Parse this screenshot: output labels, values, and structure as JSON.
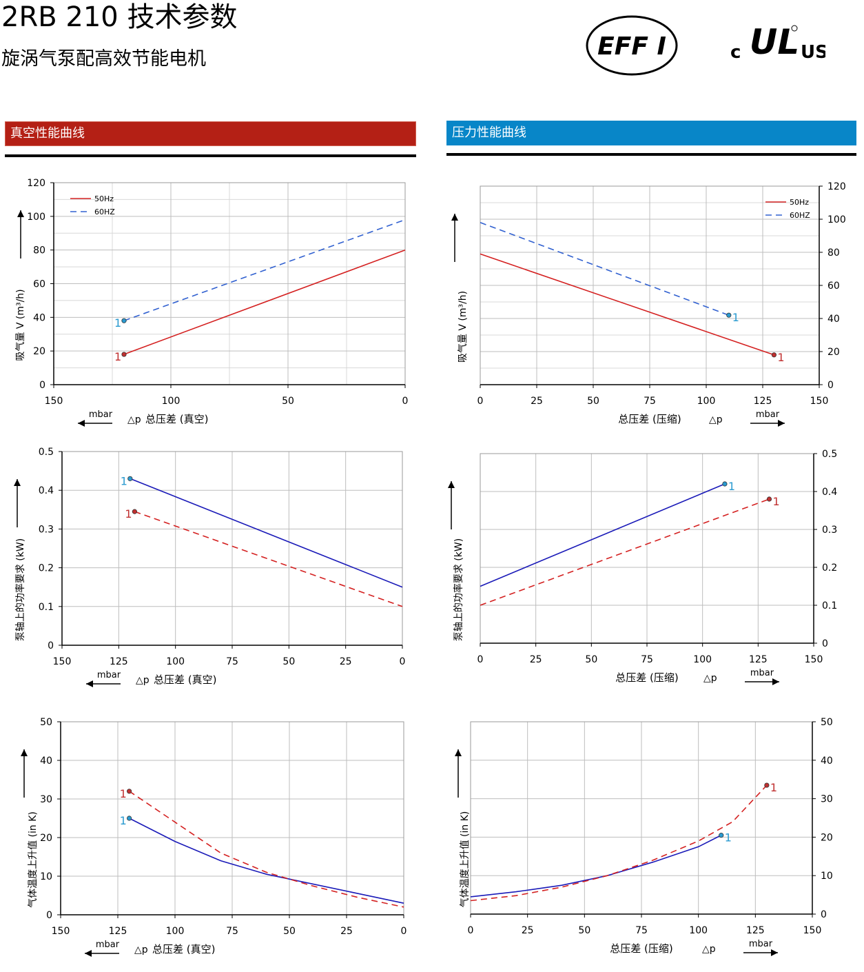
{
  "header": {
    "title": "2RB 210 技术参数",
    "subtitle": "旋涡气泵配高效节能电机",
    "logo_eff_text": "EFF I",
    "logo_ul_c": "c",
    "logo_ul_us": "US",
    "logo_ul_mark": "UL"
  },
  "sections": {
    "vacuum": "真空性能曲线",
    "pressure": "压力性能曲线"
  },
  "colors": {
    "red_bar": "#b42015",
    "blue_bar": "#0886c8",
    "series_red": "#d42020",
    "series_blue_dash": "#3060d0",
    "series_blue": "#1a1ab8",
    "marker_red": "#c03030",
    "marker_blue": "#2a9ad0"
  },
  "chart_data": [
    {
      "id": "vacuum-flow",
      "type": "line",
      "ylabel": "吸气量 V (m³/h)",
      "xlabel_unit": "mbar",
      "xlabel_symbol": "△p",
      "xlabel": "总压差 (真空)",
      "xlim": [
        150,
        0
      ],
      "ylim": [
        0,
        120
      ],
      "xticks": [
        150,
        100,
        50,
        0
      ],
      "yticks": [
        0,
        20,
        40,
        60,
        80,
        100,
        120
      ],
      "grid": true,
      "legend": "top-left",
      "series": [
        {
          "name": "50Hz",
          "style": "solid",
          "color": "#d42020",
          "x": [
            120,
            0
          ],
          "y": [
            18,
            80
          ],
          "marker_label": "1",
          "marker_color": "#c03030"
        },
        {
          "name": "60HZ",
          "style": "dashed",
          "color": "#3060d0",
          "x": [
            120,
            0
          ],
          "y": [
            38,
            98
          ],
          "marker_label": "1",
          "marker_color": "#2a9ad0"
        }
      ]
    },
    {
      "id": "pressure-flow",
      "type": "line",
      "ylabel": "吸气量 V (m³/h)",
      "xlabel_unit": "mbar",
      "xlabel_symbol": "△p",
      "xlabel": "总压差 (压缩)",
      "xlim": [
        0,
        150
      ],
      "ylim": [
        0,
        120
      ],
      "xticks": [
        0,
        25,
        50,
        75,
        100,
        125,
        150
      ],
      "yticks": [
        0,
        20,
        40,
        60,
        80,
        100,
        120
      ],
      "grid": true,
      "legend": "top-right",
      "series": [
        {
          "name": "50Hz",
          "style": "solid",
          "color": "#d42020",
          "x": [
            0,
            130
          ],
          "y": [
            79,
            18
          ],
          "marker_label": "1",
          "marker_color": "#c03030"
        },
        {
          "name": "60HZ",
          "style": "dashed",
          "color": "#3060d0",
          "x": [
            0,
            110
          ],
          "y": [
            98,
            42
          ],
          "marker_label": "1",
          "marker_color": "#2a9ad0"
        }
      ]
    },
    {
      "id": "vacuum-power",
      "type": "line",
      "ylabel": "泵轴上的功率要求 (kW)",
      "xlabel_unit": "mbar",
      "xlabel_symbol": "△p",
      "xlabel": "总压差 (真空)",
      "xlim": [
        150,
        0
      ],
      "ylim": [
        0,
        0.5
      ],
      "xticks": [
        150,
        125,
        100,
        75,
        50,
        25,
        0
      ],
      "yticks": [
        0,
        0.1,
        0.2,
        0.3,
        0.4,
        0.5
      ],
      "ytick_labels": [
        "0",
        "0.1",
        "0.2",
        "0.3",
        "0.4",
        "0.5"
      ],
      "grid": true,
      "series": [
        {
          "style": "solid",
          "color": "#1a1ab8",
          "x": [
            120,
            0
          ],
          "y": [
            0.43,
            0.15
          ],
          "marker_label": "1",
          "marker_color": "#2a9ad0"
        },
        {
          "style": "dashed",
          "color": "#d42020",
          "x": [
            118,
            0
          ],
          "y": [
            0.345,
            0.1
          ],
          "marker_label": "1",
          "marker_color": "#c03030"
        }
      ]
    },
    {
      "id": "pressure-power",
      "type": "line",
      "ylabel": "泵轴上的功率要求 (kW)",
      "xlabel_unit": "mbar",
      "xlabel_symbol": "△p",
      "xlabel": "总压差 (压缩)",
      "xlim": [
        0,
        150
      ],
      "ylim": [
        0,
        0.5
      ],
      "xticks": [
        0,
        25,
        50,
        75,
        100,
        125,
        150
      ],
      "yticks": [
        0,
        0.1,
        0.2,
        0.3,
        0.4,
        0.5
      ],
      "ytick_labels": [
        "0",
        "0.1",
        "0.2",
        "0.3",
        "0.4",
        "0.5"
      ],
      "grid": true,
      "series": [
        {
          "style": "solid",
          "color": "#1a1ab8",
          "x": [
            0,
            110
          ],
          "y": [
            0.15,
            0.42
          ],
          "marker_label": "1",
          "marker_color": "#2a9ad0"
        },
        {
          "style": "dashed",
          "color": "#d42020",
          "x": [
            0,
            130
          ],
          "y": [
            0.1,
            0.38
          ],
          "marker_label": "1",
          "marker_color": "#c03030"
        }
      ]
    },
    {
      "id": "vacuum-temp",
      "type": "line",
      "ylabel": "气体温度上升值 (in K)",
      "xlabel_unit": "mbar",
      "xlabel_symbol": "△p",
      "xlabel": "总压差 (真空)",
      "xlim": [
        150,
        0
      ],
      "ylim": [
        0,
        50
      ],
      "xticks": [
        150,
        125,
        100,
        75,
        50,
        25,
        0
      ],
      "yticks": [
        0,
        10,
        20,
        30,
        40,
        50
      ],
      "grid": true,
      "series": [
        {
          "style": "solid",
          "color": "#1a1ab8",
          "x": [
            120,
            100,
            80,
            60,
            40,
            20,
            0
          ],
          "y": [
            25,
            19,
            14,
            10.5,
            8,
            5.5,
            3
          ],
          "marker_label": "1",
          "marker_color": "#2a9ad0"
        },
        {
          "style": "dashed",
          "color": "#d42020",
          "x": [
            120,
            100,
            80,
            60,
            40,
            20,
            0
          ],
          "y": [
            32,
            24,
            16,
            11,
            7.5,
            4.5,
            2
          ],
          "marker_label": "1",
          "marker_color": "#c03030"
        }
      ]
    },
    {
      "id": "pressure-temp",
      "type": "line",
      "ylabel": "气体温度上升值 (in K)",
      "xlabel_unit": "mbar",
      "xlabel_symbol": "△p",
      "xlabel": "总压差 (压缩)",
      "xlim": [
        0,
        150
      ],
      "ylim": [
        0,
        50
      ],
      "xticks": [
        0,
        25,
        50,
        75,
        100,
        125,
        150
      ],
      "yticks": [
        0,
        10,
        20,
        30,
        40,
        50
      ],
      "grid": true,
      "series": [
        {
          "style": "solid",
          "color": "#1a1ab8",
          "x": [
            0,
            20,
            40,
            60,
            80,
            100,
            110
          ],
          "y": [
            4.5,
            5.8,
            7.5,
            10,
            13.5,
            17.5,
            20.5
          ],
          "marker_label": "1",
          "marker_color": "#2a9ad0"
        },
        {
          "style": "dashed",
          "color": "#d42020",
          "x": [
            0,
            20,
            40,
            60,
            80,
            100,
            115,
            130
          ],
          "y": [
            3.5,
            4.8,
            7,
            10,
            14,
            19,
            24,
            33.5
          ],
          "marker_label": "1",
          "marker_color": "#c03030"
        }
      ]
    }
  ]
}
